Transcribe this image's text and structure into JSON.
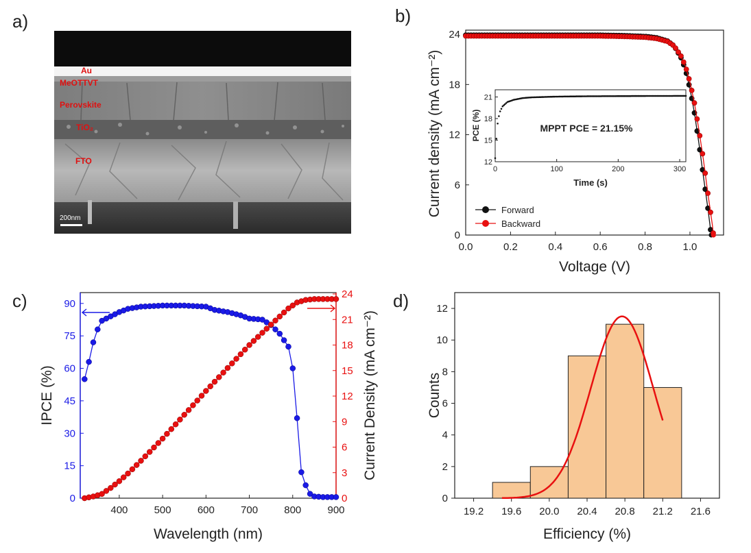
{
  "panels": {
    "a": {
      "letter": "a)"
    },
    "b": {
      "letter": "b)"
    },
    "c": {
      "letter": "c)"
    },
    "d": {
      "letter": "d)"
    }
  },
  "sem": {
    "layers": [
      "Au",
      "MeOTTVT",
      "Perovskite",
      "TiO₂",
      "FTO"
    ],
    "scalebar": "200nm",
    "colors": {
      "label": "#e01010",
      "scalebar": "#ffffff"
    }
  },
  "chart_data": [
    {
      "panel": "b",
      "type": "line",
      "xlabel": "Voltage (V)",
      "ylabel": "Current density (mA cm⁻²)",
      "xlim": [
        0.0,
        1.15
      ],
      "ylim": [
        0,
        24.5
      ],
      "xticks": [
        "0.0",
        "0.2",
        "0.4",
        "0.6",
        "0.8",
        "1.0"
      ],
      "yticks": [
        "0",
        "6",
        "12",
        "18",
        "24"
      ],
      "legend": {
        "placement": "bottom-left",
        "entries": [
          "Forward",
          "Backward"
        ]
      },
      "series": [
        {
          "name": "Forward",
          "color": "#111111",
          "points": [
            [
              0.0,
              23.9
            ],
            [
              0.1,
              23.9
            ],
            [
              0.2,
              23.9
            ],
            [
              0.3,
              23.9
            ],
            [
              0.4,
              23.9
            ],
            [
              0.5,
              23.9
            ],
            [
              0.6,
              23.9
            ],
            [
              0.7,
              23.85
            ],
            [
              0.8,
              23.75
            ],
            [
              0.85,
              23.6
            ],
            [
              0.9,
              23.2
            ],
            [
              0.93,
              22.6
            ],
            [
              0.96,
              21.2
            ],
            [
              0.98,
              19.8
            ],
            [
              1.0,
              17.5
            ],
            [
              1.02,
              14.6
            ],
            [
              1.04,
              11.0
            ],
            [
              1.06,
              7.0
            ],
            [
              1.08,
              3.2
            ],
            [
              1.095,
              0.0
            ]
          ]
        },
        {
          "name": "Backward",
          "color": "#e81010",
          "points": [
            [
              0.0,
              23.8
            ],
            [
              0.1,
              23.8
            ],
            [
              0.2,
              23.8
            ],
            [
              0.3,
              23.8
            ],
            [
              0.4,
              23.8
            ],
            [
              0.5,
              23.8
            ],
            [
              0.6,
              23.8
            ],
            [
              0.7,
              23.75
            ],
            [
              0.8,
              23.65
            ],
            [
              0.85,
              23.5
            ],
            [
              0.9,
              23.15
            ],
            [
              0.93,
              22.6
            ],
            [
              0.96,
              21.4
            ],
            [
              0.98,
              20.2
            ],
            [
              1.0,
              18.3
            ],
            [
              1.02,
              15.8
            ],
            [
              1.04,
              12.6
            ],
            [
              1.06,
              9.0
            ],
            [
              1.08,
              5.0
            ],
            [
              1.1,
              1.2
            ],
            [
              1.105,
              0.0
            ]
          ]
        }
      ],
      "inset": {
        "type": "line",
        "xlabel": "Time (s)",
        "ylabel": "PCE (%)",
        "xlim": [
          0,
          310
        ],
        "ylim": [
          12,
          22
        ],
        "xticks": [
          "0",
          "100",
          "200",
          "300"
        ],
        "yticks": [
          "12",
          "15",
          "18",
          "21"
        ],
        "annotation": "MPPT PCE = 21.15%",
        "series": [
          {
            "name": "",
            "color": "#111111",
            "points": [
              [
                0,
                12.5
              ],
              [
                1,
                13.6
              ],
              [
                2,
                15.2
              ],
              [
                3,
                16.6
              ],
              [
                5,
                18.0
              ],
              [
                8,
                19.0
              ],
              [
                12,
                19.7
              ],
              [
                20,
                20.3
              ],
              [
                30,
                20.6
              ],
              [
                45,
                20.85
              ],
              [
                60,
                20.95
              ],
              [
                100,
                21.05
              ],
              [
                150,
                21.1
              ],
              [
                200,
                21.12
              ],
              [
                250,
                21.14
              ],
              [
                300,
                21.15
              ],
              [
                310,
                21.15
              ]
            ]
          }
        ]
      }
    },
    {
      "panel": "c",
      "type": "scatter",
      "xlabel": "Wavelength (nm)",
      "ylabel_left": "IPCE (%)",
      "ylabel_right": "Current Density (mA cm⁻²)",
      "xlim": [
        310,
        900
      ],
      "ylim_left": [
        0,
        95
      ],
      "ylim_right": [
        0,
        24
      ],
      "xticks": [
        "400",
        "500",
        "600",
        "700",
        "800",
        "900"
      ],
      "yticks_left": [
        "0",
        "15",
        "30",
        "45",
        "60",
        "75",
        "90"
      ],
      "yticks_right": [
        "0",
        "3",
        "6",
        "9",
        "12",
        "15",
        "18",
        "21",
        "24"
      ],
      "series": [
        {
          "name": "IPCE",
          "axis": "left",
          "color": "#1a1ae6",
          "points": [
            [
              320,
              55
            ],
            [
              330,
              63
            ],
            [
              340,
              72
            ],
            [
              350,
              78
            ],
            [
              360,
              82
            ],
            [
              380,
              84
            ],
            [
              400,
              86
            ],
            [
              420,
              87.5
            ],
            [
              450,
              88.5
            ],
            [
              500,
              89
            ],
            [
              550,
              89
            ],
            [
              600,
              88.5
            ],
            [
              620,
              87
            ],
            [
              650,
              86
            ],
            [
              680,
              84.5
            ],
            [
              700,
              83
            ],
            [
              730,
              82.5
            ],
            [
              750,
              80
            ],
            [
              770,
              76
            ],
            [
              790,
              70
            ],
            [
              800,
              60
            ],
            [
              810,
              37
            ],
            [
              820,
              12
            ],
            [
              830,
              6
            ],
            [
              840,
              2
            ],
            [
              850,
              0.8
            ],
            [
              870,
              0.5
            ],
            [
              900,
              0.5
            ]
          ]
        },
        {
          "name": "Current Density",
          "axis": "right",
          "color": "#e81010",
          "points": [
            [
              320,
              0
            ],
            [
              340,
              0.2
            ],
            [
              360,
              0.5
            ],
            [
              380,
              1.2
            ],
            [
              400,
              2.0
            ],
            [
              420,
              2.9
            ],
            [
              450,
              4.4
            ],
            [
              500,
              7.0
            ],
            [
              550,
              9.8
            ],
            [
              600,
              12.6
            ],
            [
              650,
              15.3
            ],
            [
              700,
              18.0
            ],
            [
              750,
              20.4
            ],
            [
              790,
              22.3
            ],
            [
              810,
              23.0
            ],
            [
              830,
              23.3
            ],
            [
              850,
              23.4
            ],
            [
              900,
              23.4
            ]
          ]
        }
      ]
    },
    {
      "panel": "d",
      "type": "bar",
      "xlabel": "Efficiency (%)",
      "ylabel": "Counts",
      "xlim": [
        19.0,
        21.8
      ],
      "ylim": [
        0,
        13
      ],
      "xticks": [
        "19.2",
        "19.6",
        "20.0",
        "20.4",
        "20.8",
        "21.2",
        "21.6"
      ],
      "yticks": [
        "0",
        "2",
        "4",
        "6",
        "8",
        "10",
        "12"
      ],
      "bins": [
        {
          "from": 19.4,
          "to": 19.8,
          "count": 1
        },
        {
          "from": 19.8,
          "to": 20.2,
          "count": 2
        },
        {
          "from": 20.2,
          "to": 20.6,
          "count": 9
        },
        {
          "from": 20.6,
          "to": 21.0,
          "count": 11
        },
        {
          "from": 21.0,
          "to": 21.4,
          "count": 7
        }
      ],
      "fit": {
        "mean": 20.77,
        "sd": 0.33,
        "peak": 11.5,
        "range": [
          19.5,
          21.2
        ],
        "color": "#e81010"
      },
      "bar_color": "#f8c896"
    }
  ]
}
